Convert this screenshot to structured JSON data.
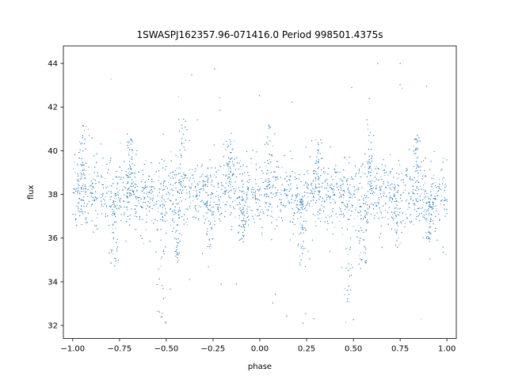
{
  "chart_data": {
    "type": "scatter",
    "title": "1SWASPJ162357.96-071416.0 Period 998501.4375s",
    "xlabel": "phase",
    "ylabel": "flux",
    "xlim": [
      -1.05,
      1.05
    ],
    "ylim": [
      31.4,
      44.8
    ],
    "xticks": [
      -1.0,
      -0.75,
      -0.5,
      -0.25,
      0.0,
      0.25,
      0.5,
      0.75,
      1.0
    ],
    "xtick_labels": [
      "−1.00",
      "−0.75",
      "−0.50",
      "−0.25",
      "0.00",
      "0.25",
      "0.50",
      "0.75",
      "1.00"
    ],
    "yticks": [
      32,
      34,
      36,
      38,
      40,
      42,
      44
    ],
    "ytick_labels": [
      "32",
      "34",
      "36",
      "38",
      "40",
      "42",
      "44"
    ],
    "grid": false,
    "legend": "none",
    "point_color": "#1f77b4",
    "x_range": [
      -1.0,
      1.0
    ],
    "y_median": 38.0,
    "y_core_range": [
      36.5,
      39.5
    ],
    "y_envelope": [
      32.0,
      44.0
    ],
    "dips": [
      {
        "x": -0.52,
        "y_min": 32.1
      },
      {
        "x": -0.44,
        "y_min": 34.8
      },
      {
        "x": -0.27,
        "y_min": 35.5
      },
      {
        "x": -0.09,
        "y_min": 35.8
      },
      {
        "x": 0.22,
        "y_min": 34.7
      },
      {
        "x": 0.47,
        "y_min": 32.1
      },
      {
        "x": 0.55,
        "y_min": 34.8
      },
      {
        "x": 0.73,
        "y_min": 35.5
      },
      {
        "x": 0.91,
        "y_min": 35.8
      },
      {
        "x": -0.78,
        "y_min": 34.7
      }
    ],
    "peaks": [
      {
        "x": -0.95,
        "y_max": 41.2
      },
      {
        "x": -0.69,
        "y_max": 40.6
      },
      {
        "x": -0.41,
        "y_max": 41.5
      },
      {
        "x": -0.16,
        "y_max": 40.8
      },
      {
        "x": 0.05,
        "y_max": 41.2
      },
      {
        "x": 0.31,
        "y_max": 40.6
      },
      {
        "x": 0.59,
        "y_max": 41.5
      },
      {
        "x": 0.84,
        "y_max": 40.8
      }
    ]
  }
}
